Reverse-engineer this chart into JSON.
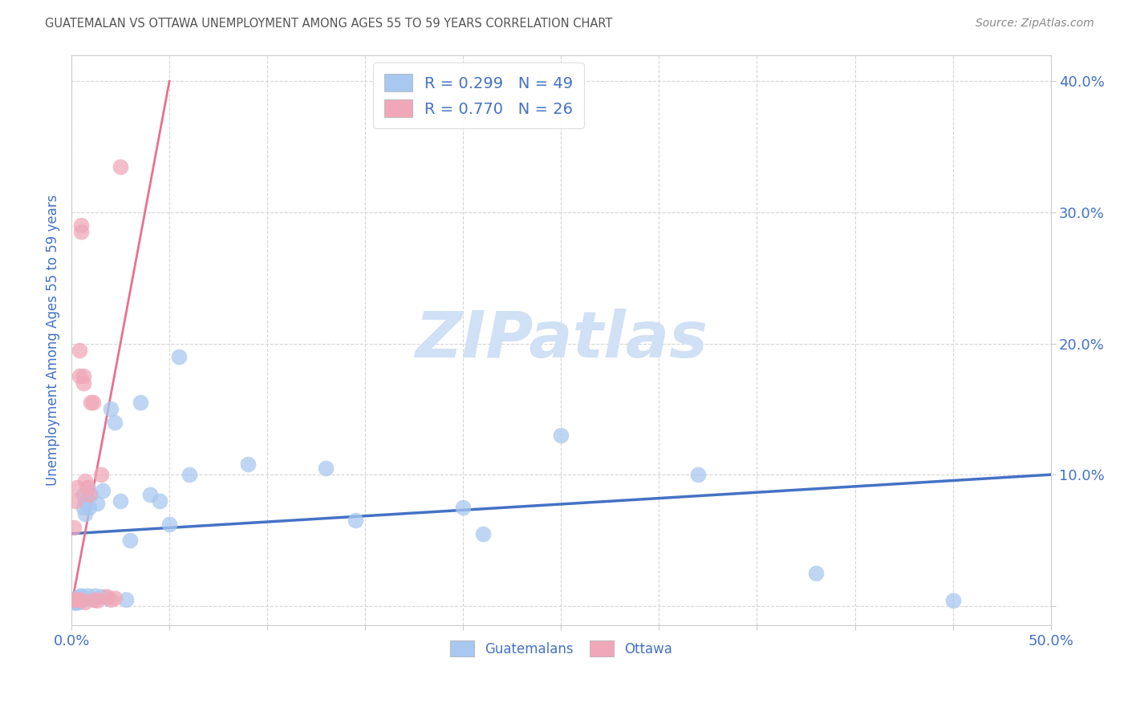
{
  "title": "GUATEMALAN VS OTTAWA UNEMPLOYMENT AMONG AGES 55 TO 59 YEARS CORRELATION CHART",
  "source": "Source: ZipAtlas.com",
  "ylabel": "Unemployment Among Ages 55 to 59 years",
  "xlim": [
    0.0,
    0.5
  ],
  "ylim": [
    -0.015,
    0.42
  ],
  "yticks": [
    0.0,
    0.1,
    0.2,
    0.3,
    0.4
  ],
  "ytick_labels": [
    "",
    "10.0%",
    "20.0%",
    "30.0%",
    "40.0%"
  ],
  "xticks": [
    0.0,
    0.05,
    0.1,
    0.15,
    0.2,
    0.25,
    0.3,
    0.35,
    0.4,
    0.45,
    0.5
  ],
  "blue_color": "#A8C8F0",
  "pink_color": "#F0A8B8",
  "blue_line_color": "#4472C4",
  "pink_line_color": "#E87090",
  "title_color": "#555555",
  "source_color": "#888888",
  "axis_label_color": "#4472C4",
  "legend_R_color": "#4472C4",
  "R_blue": 0.299,
  "N_blue": 49,
  "R_pink": 0.77,
  "N_pink": 26,
  "guatemalan_x": [
    0.001,
    0.001,
    0.002,
    0.002,
    0.002,
    0.003,
    0.003,
    0.003,
    0.004,
    0.004,
    0.004,
    0.005,
    0.005,
    0.005,
    0.006,
    0.006,
    0.006,
    0.007,
    0.007,
    0.008,
    0.008,
    0.009,
    0.01,
    0.011,
    0.012,
    0.013,
    0.015,
    0.016,
    0.018,
    0.02,
    0.022,
    0.025,
    0.028,
    0.03,
    0.035,
    0.04,
    0.045,
    0.05,
    0.055,
    0.06,
    0.09,
    0.13,
    0.145,
    0.2,
    0.21,
    0.25,
    0.32,
    0.38,
    0.45
  ],
  "guatemalan_y": [
    0.005,
    0.003,
    0.005,
    0.004,
    0.002,
    0.006,
    0.004,
    0.003,
    0.007,
    0.005,
    0.003,
    0.008,
    0.006,
    0.004,
    0.085,
    0.075,
    0.005,
    0.08,
    0.07,
    0.09,
    0.008,
    0.075,
    0.085,
    0.005,
    0.008,
    0.078,
    0.007,
    0.088,
    0.006,
    0.15,
    0.14,
    0.08,
    0.005,
    0.05,
    0.155,
    0.085,
    0.08,
    0.062,
    0.19,
    0.1,
    0.108,
    0.105,
    0.065,
    0.075,
    0.055,
    0.13,
    0.1,
    0.025,
    0.004
  ],
  "ottawa_x": [
    0.001,
    0.001,
    0.002,
    0.002,
    0.003,
    0.003,
    0.004,
    0.004,
    0.005,
    0.005,
    0.005,
    0.006,
    0.006,
    0.007,
    0.007,
    0.008,
    0.009,
    0.01,
    0.011,
    0.012,
    0.013,
    0.015,
    0.018,
    0.02,
    0.022,
    0.025
  ],
  "ottawa_y": [
    0.06,
    0.005,
    0.08,
    0.005,
    0.09,
    0.005,
    0.195,
    0.175,
    0.29,
    0.285,
    0.005,
    0.175,
    0.17,
    0.095,
    0.003,
    0.09,
    0.085,
    0.155,
    0.155,
    0.005,
    0.004,
    0.1,
    0.007,
    0.005,
    0.006,
    0.335
  ],
  "pink_line_x": [
    0.0,
    0.05
  ],
  "pink_line_y": [
    0.0,
    0.4
  ],
  "blue_line_x": [
    0.0,
    0.5
  ],
  "blue_line_y": [
    0.055,
    0.1
  ],
  "watermark": "ZIPatlas",
  "watermark_color": "#D0E0F5",
  "background_color": "#FFFFFF"
}
